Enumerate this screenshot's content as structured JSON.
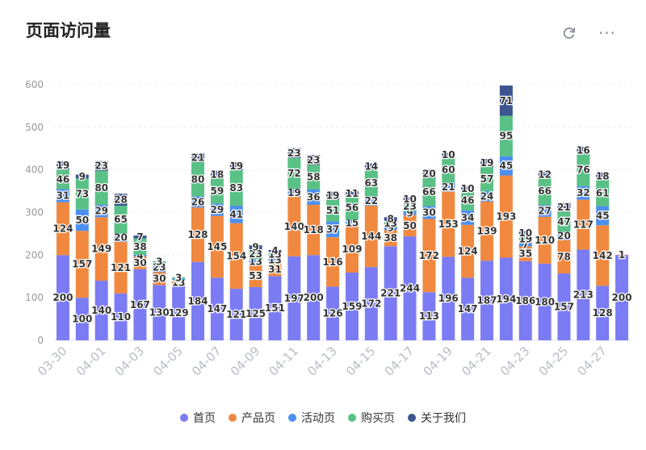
{
  "header": {
    "title": "页面访问量",
    "refresh_icon": "refresh-icon",
    "more_icon": "more-horizontal-icon",
    "more_label": "···"
  },
  "chart_data": {
    "type": "bar",
    "stacked": true,
    "title": "",
    "xlabel": "",
    "ylabel": "",
    "ylim": [
      0,
      600
    ],
    "yticks": [
      0,
      100,
      200,
      300,
      400,
      500,
      600
    ],
    "grid": true,
    "legend_position": "bottom",
    "categories": [
      "03-30",
      "03-31",
      "04-01",
      "04-02",
      "04-03",
      "04-04",
      "04-05",
      "04-06",
      "04-07",
      "04-08",
      "04-09",
      "04-10",
      "04-11",
      "04-12",
      "04-13",
      "04-14",
      "04-15",
      "04-16",
      "04-17",
      "04-18",
      "04-19",
      "04-20",
      "04-21",
      "04-22",
      "04-23",
      "04-24",
      "04-25",
      "04-26",
      "04-27",
      "04-28"
    ],
    "xtick_labels": [
      "03-30",
      "04-01",
      "04-03",
      "04-05",
      "04-07",
      "04-09",
      "04-11",
      "04-13",
      "04-15",
      "04-17",
      "04-19",
      "04-21",
      "04-23",
      "04-25",
      "04-27"
    ],
    "series": [
      {
        "name": "首页",
        "color": "#7b7cf3",
        "values": [
          200,
          100,
          140,
          110,
          167,
          130,
          129,
          184,
          147,
          121,
          125,
          151,
          197,
          200,
          126,
          159,
          172,
          221,
          244,
          113,
          196,
          147,
          187,
          194,
          186,
          180,
          157,
          213,
          128,
          200
        ]
      },
      {
        "name": "产品页",
        "color": "#f0893f",
        "values": [
          124,
          157,
          149,
          121,
          30,
          30,
          13,
          128,
          145,
          154,
          53,
          31,
          140,
          118,
          116,
          109,
          144,
          38,
          50,
          172,
          153,
          124,
          139,
          193,
          35,
          110,
          78,
          117,
          142,
          1
        ]
      },
      {
        "name": "活动页",
        "color": "#4c8ff0",
        "values": [
          31,
          50,
          29,
          20,
          4,
          23,
          3,
          26,
          29,
          41,
          13,
          13,
          19,
          36,
          37,
          15,
          22,
          9,
          9,
          30,
          21,
          34,
          24,
          45,
          7,
          27,
          20,
          32,
          45,
          null
        ]
      },
      {
        "name": "购买页",
        "color": "#59c185",
        "values": [
          46,
          73,
          80,
          65,
          38,
          3,
          3,
          80,
          59,
          83,
          23,
          13,
          72,
          58,
          51,
          56,
          63,
          13,
          23,
          66,
          60,
          46,
          57,
          95,
          19,
          66,
          47,
          76,
          61,
          null
        ]
      },
      {
        "name": "关于我们",
        "color": "#3d5591",
        "values": [
          19,
          9,
          23,
          28,
          7,
          null,
          null,
          21,
          18,
          19,
          9,
          4,
          23,
          23,
          19,
          11,
          14,
          8,
          10,
          20,
          10,
          10,
          19,
          71,
          10,
          12,
          21,
          16,
          18,
          null
        ]
      }
    ]
  }
}
